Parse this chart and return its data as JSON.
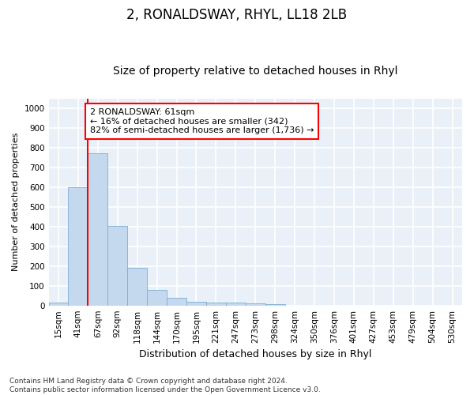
{
  "title1": "2, RONALDSWAY, RHYL, LL18 2LB",
  "title2": "Size of property relative to detached houses in Rhyl",
  "xlabel": "Distribution of detached houses by size in Rhyl",
  "ylabel": "Number of detached properties",
  "categories": [
    "15sqm",
    "41sqm",
    "67sqm",
    "92sqm",
    "118sqm",
    "144sqm",
    "170sqm",
    "195sqm",
    "221sqm",
    "247sqm",
    "273sqm",
    "298sqm",
    "324sqm",
    "350sqm",
    "376sqm",
    "401sqm",
    "427sqm",
    "453sqm",
    "479sqm",
    "504sqm",
    "530sqm"
  ],
  "values": [
    15,
    600,
    770,
    405,
    190,
    78,
    38,
    20,
    13,
    13,
    10,
    7,
    0,
    0,
    0,
    0,
    0,
    0,
    0,
    0,
    0
  ],
  "bar_color": "#c5d9ee",
  "bar_edge_color": "#7aaed4",
  "vline_x": 1.5,
  "vline_color": "red",
  "vline_linewidth": 1.5,
  "annotation_text": "2 RONALDSWAY: 61sqm\n← 16% of detached houses are smaller (342)\n82% of semi-detached houses are larger (1,736) →",
  "annotation_box_color": "white",
  "annotation_box_edge_color": "red",
  "ylim": [
    0,
    1050
  ],
  "yticks": [
    0,
    100,
    200,
    300,
    400,
    500,
    600,
    700,
    800,
    900,
    1000
  ],
  "footnote": "Contains HM Land Registry data © Crown copyright and database right 2024.\nContains public sector information licensed under the Open Government Licence v3.0.",
  "bg_color": "#ffffff",
  "plot_bg_color": "#eaf0f8",
  "grid_color": "#ffffff",
  "title1_fontsize": 12,
  "title2_fontsize": 10,
  "xlabel_fontsize": 9,
  "ylabel_fontsize": 8,
  "tick_fontsize": 7.5,
  "annotation_fontsize": 8,
  "footnote_fontsize": 6.5
}
